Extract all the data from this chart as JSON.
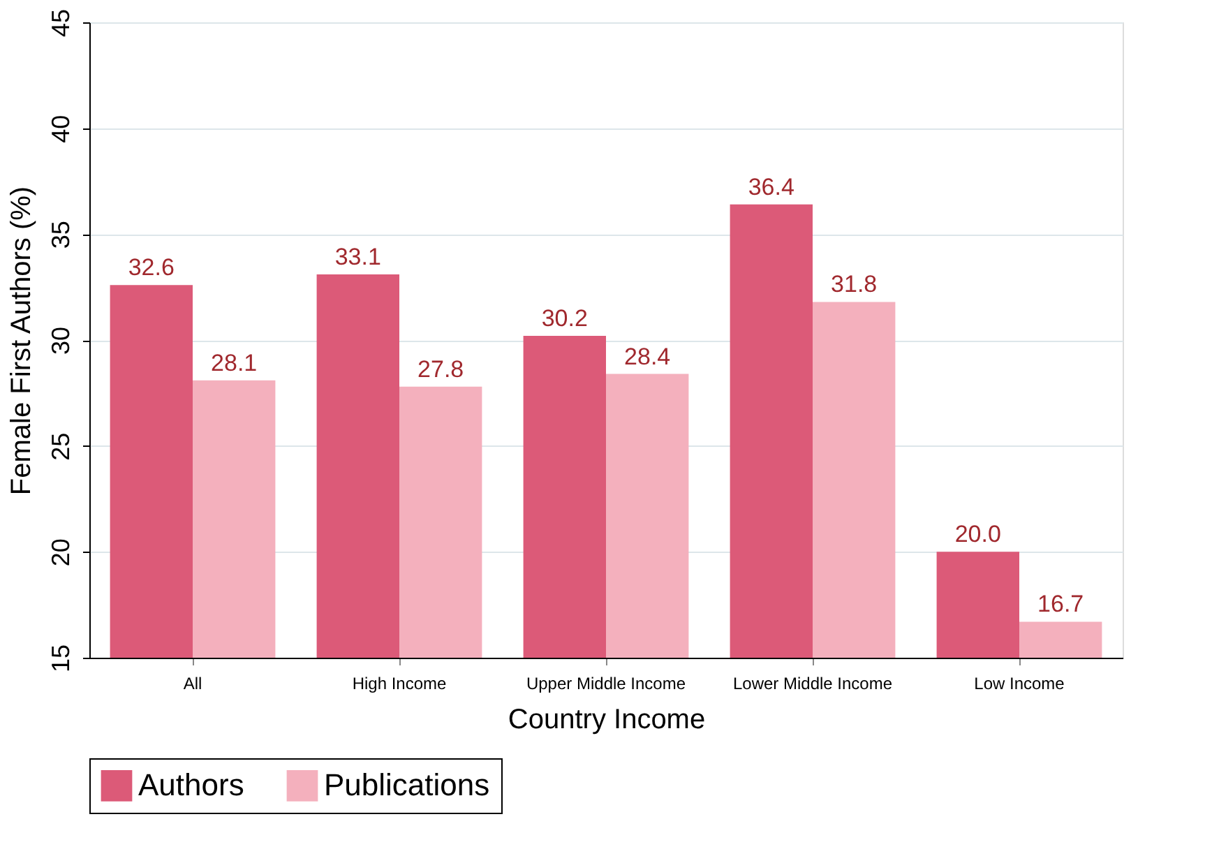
{
  "chart_data": {
    "type": "bar",
    "xlabel": "Country Income",
    "ylabel": "Female First Authors (%)",
    "categories": [
      "All",
      "High Income",
      "Upper Middle Income",
      "Lower Middle Income",
      "Low Income"
    ],
    "series": [
      {
        "name": "Authors",
        "color": "#dc5a78",
        "values": [
          32.6,
          33.1,
          30.2,
          36.4,
          20.0
        ],
        "value_labels": [
          "32.6",
          "33.1",
          "30.2",
          "36.4",
          "20.0"
        ]
      },
      {
        "name": "Publications",
        "color": "#f4b0bd",
        "values": [
          28.1,
          27.8,
          28.4,
          31.8,
          16.7
        ],
        "value_labels": [
          "28.1",
          "27.8",
          "28.4",
          "31.8",
          "16.7"
        ]
      }
    ],
    "ylim": [
      15,
      45
    ],
    "yticks": [
      15,
      20,
      25,
      30,
      35,
      40,
      45
    ],
    "grid": "y",
    "legend": "bottom"
  }
}
